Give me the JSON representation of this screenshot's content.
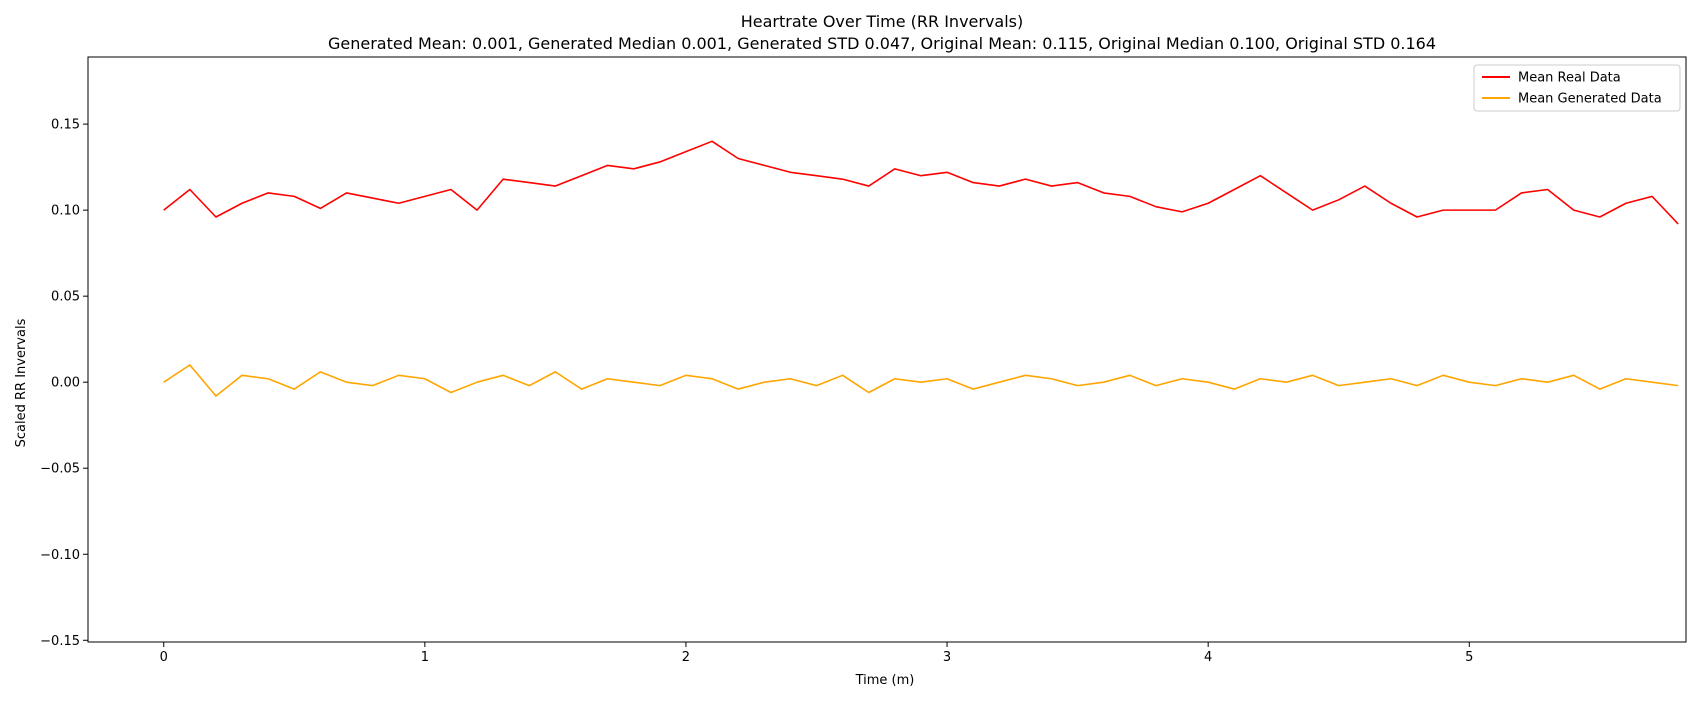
{
  "chart_data": {
    "type": "line",
    "title": "Heartrate Over Time (RR Invervals)",
    "subtitle": "Generated Mean: 0.001, Generated Median 0.001, Generated STD 0.047, Original Mean: 0.115, Original Median 0.100, Original STD 0.164",
    "xlabel": "Time (m)",
    "ylabel": "Scaled RR Invervals",
    "xlim": [
      -0.29,
      5.83
    ],
    "ylim": [
      -0.151,
      0.189
    ],
    "x_ticks": [
      0,
      1,
      2,
      3,
      4,
      5
    ],
    "x_tick_labels": [
      "0",
      "1",
      "2",
      "3",
      "4",
      "5"
    ],
    "y_ticks": [
      -0.15,
      -0.1,
      -0.05,
      0.0,
      0.05,
      0.1,
      0.15
    ],
    "y_tick_labels": [
      "−0.15",
      "−0.10",
      "−0.05",
      "0.00",
      "0.05",
      "0.10",
      "0.15"
    ],
    "x_range": [
      0,
      5.83
    ],
    "grid": false,
    "legend_position": "top-right",
    "series": [
      {
        "name": "Mean Real Data",
        "color": "#ff0000",
        "x": [
          0.0,
          0.1,
          0.2,
          0.3,
          0.4,
          0.5,
          0.6,
          0.7,
          0.8,
          0.9,
          1.0,
          1.1,
          1.2,
          1.3,
          1.4,
          1.5,
          1.6,
          1.7,
          1.8,
          1.9,
          2.0,
          2.1,
          2.2,
          2.3,
          2.4,
          2.5,
          2.6,
          2.7,
          2.8,
          2.9,
          3.0,
          3.1,
          3.2,
          3.3,
          3.4,
          3.5,
          3.6,
          3.7,
          3.8,
          3.9,
          4.0,
          4.1,
          4.2,
          4.3,
          4.4,
          4.5,
          4.6,
          4.7,
          4.8,
          4.9,
          5.0,
          5.1,
          5.2,
          5.3,
          5.4,
          5.5,
          5.6,
          5.7,
          5.8
        ],
        "values": [
          0.1,
          0.112,
          0.096,
          0.104,
          0.11,
          0.108,
          0.101,
          0.11,
          0.107,
          0.104,
          0.108,
          0.112,
          0.1,
          0.118,
          0.116,
          0.114,
          0.12,
          0.126,
          0.124,
          0.128,
          0.134,
          0.14,
          0.13,
          0.126,
          0.122,
          0.12,
          0.118,
          0.114,
          0.124,
          0.12,
          0.122,
          0.116,
          0.114,
          0.118,
          0.114,
          0.116,
          0.11,
          0.108,
          0.102,
          0.099,
          0.104,
          0.112,
          0.12,
          0.11,
          0.1,
          0.106,
          0.114,
          0.104,
          0.096,
          0.1,
          0.1,
          0.1,
          0.11,
          0.112,
          0.1,
          0.096,
          0.104,
          0.108,
          0.092
        ]
      },
      {
        "name": "Mean Generated Data",
        "color": "#ffa500",
        "x": [
          0.0,
          0.1,
          0.2,
          0.3,
          0.4,
          0.5,
          0.6,
          0.7,
          0.8,
          0.9,
          1.0,
          1.1,
          1.2,
          1.3,
          1.4,
          1.5,
          1.6,
          1.7,
          1.8,
          1.9,
          2.0,
          2.1,
          2.2,
          2.3,
          2.4,
          2.5,
          2.6,
          2.7,
          2.8,
          2.9,
          3.0,
          3.1,
          3.2,
          3.3,
          3.4,
          3.5,
          3.6,
          3.7,
          3.8,
          3.9,
          4.0,
          4.1,
          4.2,
          4.3,
          4.4,
          4.5,
          4.6,
          4.7,
          4.8,
          4.9,
          5.0,
          5.1,
          5.2,
          5.3,
          5.4,
          5.5,
          5.6,
          5.7,
          5.8
        ],
        "values": [
          0.0,
          0.01,
          -0.008,
          0.004,
          0.002,
          -0.004,
          0.006,
          0.0,
          -0.002,
          0.004,
          0.002,
          -0.006,
          0.0,
          0.004,
          -0.002,
          0.006,
          -0.004,
          0.002,
          0.0,
          -0.002,
          0.004,
          0.002,
          -0.004,
          0.0,
          0.002,
          -0.002,
          0.004,
          -0.006,
          0.002,
          0.0,
          0.002,
          -0.004,
          0.0,
          0.004,
          0.002,
          -0.002,
          0.0,
          0.004,
          -0.002,
          0.002,
          0.0,
          -0.004,
          0.002,
          0.0,
          0.004,
          -0.002,
          0.0,
          0.002,
          -0.002,
          0.004,
          0.0,
          -0.002,
          0.002,
          0.0,
          0.004,
          -0.004,
          0.002,
          0.0,
          -0.002
        ]
      }
    ]
  }
}
